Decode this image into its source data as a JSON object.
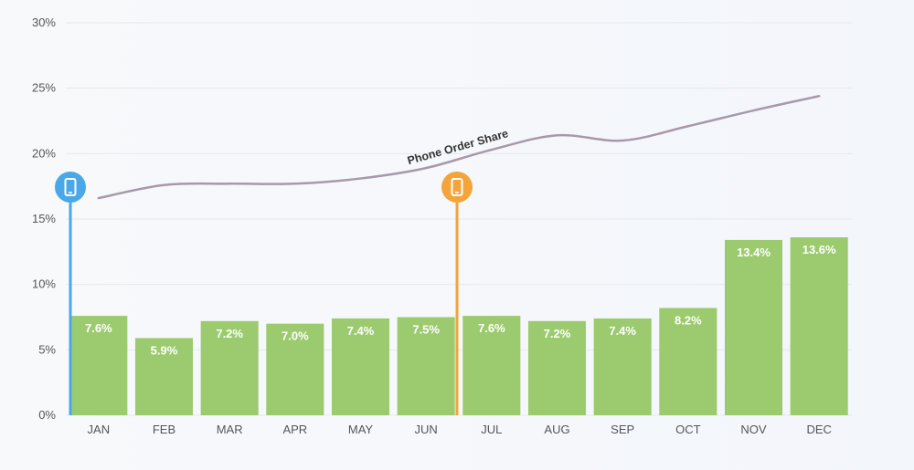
{
  "chart_data": {
    "type": "bar",
    "categories": [
      "JAN",
      "FEB",
      "MAR",
      "APR",
      "MAY",
      "JUN",
      "JUL",
      "AUG",
      "SEP",
      "OCT",
      "NOV",
      "DEC"
    ],
    "bar_values": [
      7.6,
      5.9,
      7.2,
      7.0,
      7.4,
      7.5,
      7.6,
      7.2,
      7.4,
      8.2,
      13.4,
      13.6
    ],
    "bar_labels": [
      "7.6%",
      "5.9%",
      "7.2%",
      "7.0%",
      "7.4%",
      "7.5%",
      "7.6%",
      "7.2%",
      "7.4%",
      "8.2%",
      "13.4%",
      "13.6%"
    ],
    "line_series": {
      "name": "Phone Order Share",
      "values": [
        16.6,
        17.6,
        17.7,
        17.7,
        18.1,
        18.9,
        20.3,
        21.4,
        21.0,
        22.1,
        23.3,
        24.4
      ]
    },
    "y_ticks": [
      "0%",
      "5%",
      "10%",
      "15%",
      "20%",
      "25%",
      "30%"
    ],
    "ylim": [
      0,
      30
    ],
    "grid": true,
    "markers": [
      {
        "at": "JAN",
        "icon": "phone-icon",
        "color": "#4aa8e8"
      },
      {
        "at": "JUL",
        "icon": "phone-icon",
        "color": "#f3a43a"
      }
    ],
    "colors": {
      "bar": "#9ccb6f",
      "line": "#a898aa",
      "grid": "#e6e8ec"
    }
  }
}
